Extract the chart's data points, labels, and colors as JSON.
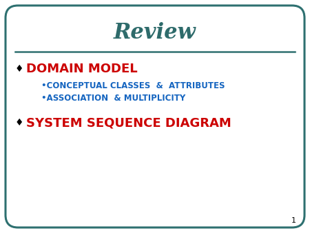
{
  "title": "Review",
  "title_color": "#2E6B6B",
  "title_fontsize": 22,
  "title_style": "italic",
  "title_weight": "bold",
  "bg_color": "#FFFFFF",
  "border_color": "#2E7070",
  "line_color": "#2E7070",
  "bullet1_text": "DOMAIN MODEL",
  "bullet1_color": "#CC0000",
  "bullet1_fontsize": 13,
  "sub_bullet1": "CONCEPTUAL CLASSES  &  ATTRIBUTES",
  "sub_bullet2": "ASSOCIATION  & MULTIPLICITY",
  "sub_color": "#1565C0",
  "sub_fontsize": 8.5,
  "bullet2_text": "SYSTEM SEQUENCE DIAGRAM",
  "bullet2_color": "#CC0000",
  "bullet2_fontsize": 13,
  "diamond": "♦",
  "bullet_dot": "•",
  "page_number": "1"
}
